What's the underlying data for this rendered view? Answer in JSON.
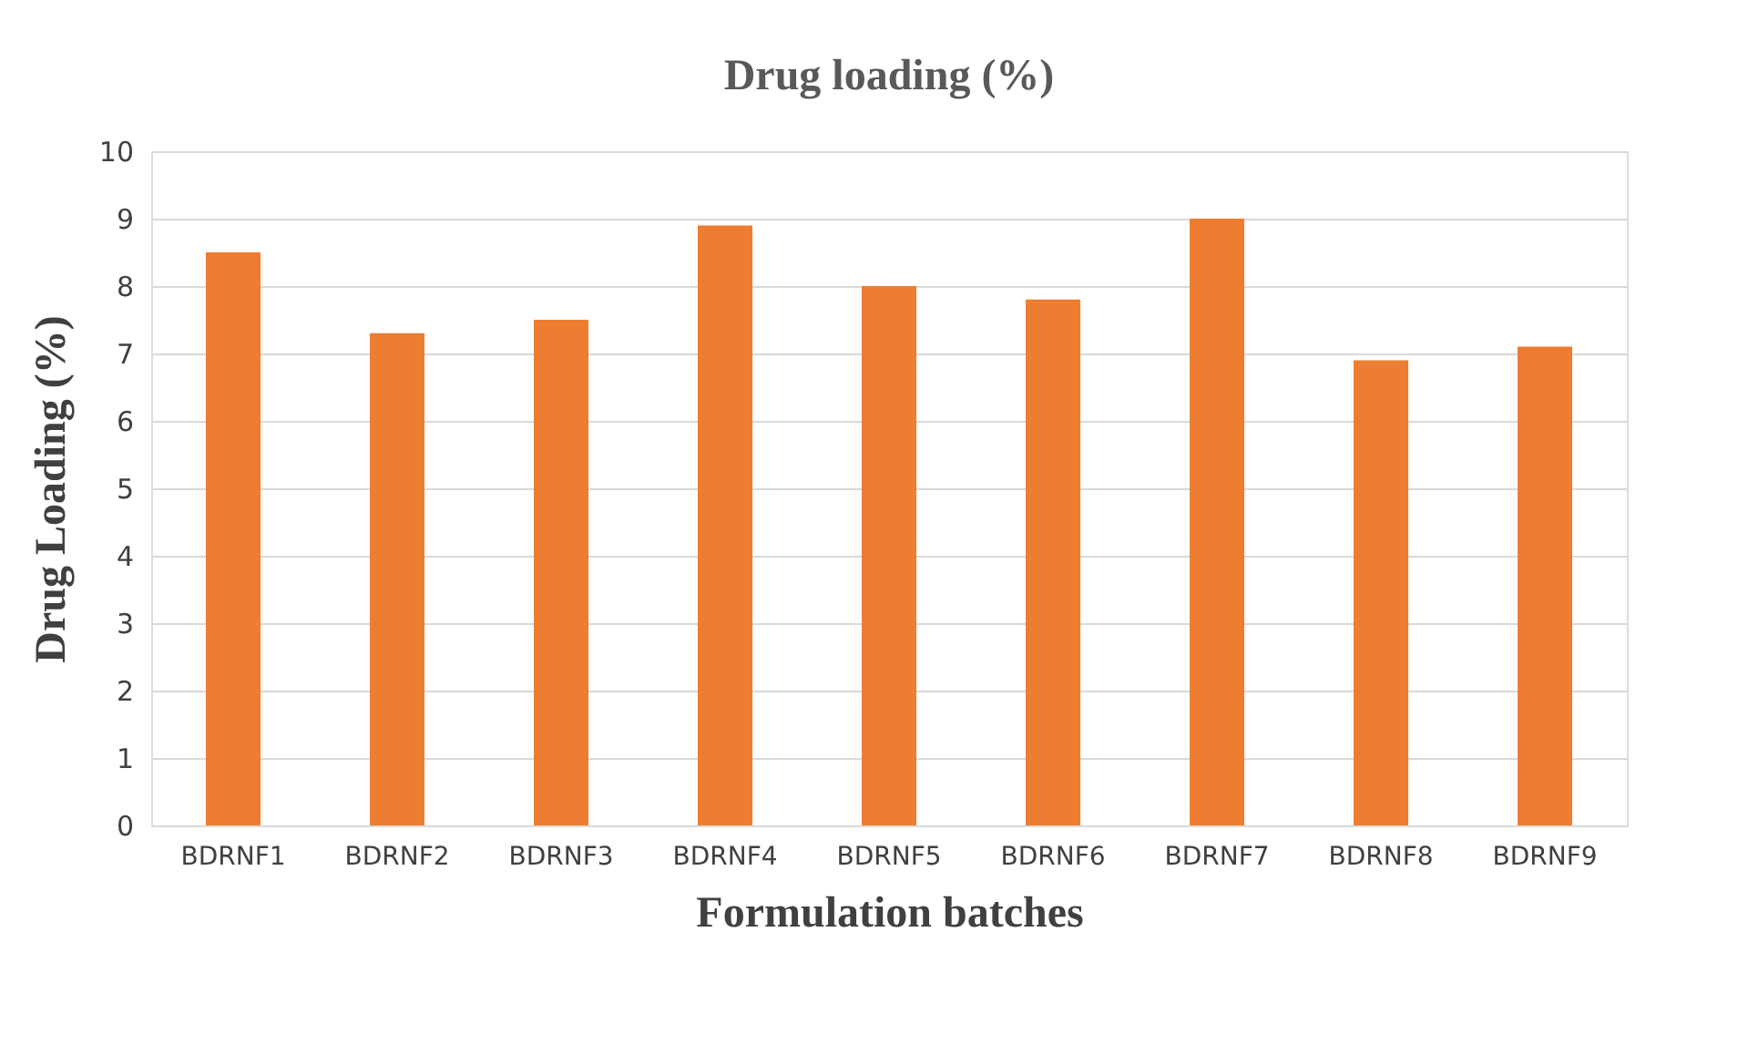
{
  "chart_data": {
    "type": "bar",
    "title": "Drug loading  (%)",
    "xlabel": "Formulation batches",
    "ylabel": "Drug Loading (%)",
    "categories": [
      "BDRNF1",
      "BDRNF2",
      "BDRNF3",
      "BDRNF4",
      "BDRNF5",
      "BDRNF6",
      "BDRNF7",
      "BDRNF8",
      "BDRNF9"
    ],
    "values": [
      8.5,
      7.3,
      7.5,
      8.9,
      8.0,
      7.8,
      9.0,
      6.9,
      7.1
    ],
    "color": "#ed7d31",
    "ylim": [
      0,
      10
    ],
    "yticks": [
      0,
      1,
      2,
      3,
      4,
      5,
      6,
      7,
      8,
      9,
      10
    ],
    "grid": "y"
  }
}
